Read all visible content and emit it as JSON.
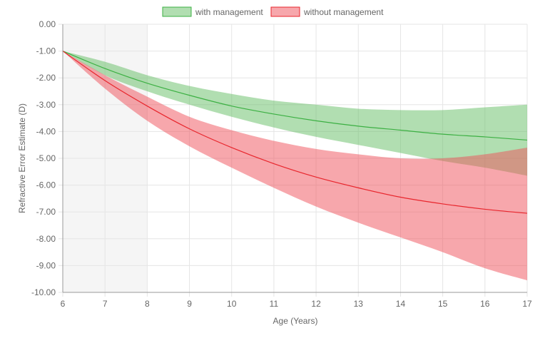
{
  "colors": {
    "with_fill": "rgba(100,190,100,0.5)",
    "with_line": "#3cb043",
    "without_fill": "rgba(240,80,90,0.5)",
    "without_line": "#e8262d",
    "grid": "#e5e5e5",
    "axis": "#999999",
    "shade": "#f5f5f5",
    "text": "#666666"
  },
  "chart_data": {
    "type": "area",
    "title": "",
    "xlabel": "Age (Years)",
    "ylabel": "Refractive Error Estimate (D)",
    "xlim": [
      6,
      17
    ],
    "ylim": [
      -10,
      0
    ],
    "x_ticks": [
      6,
      7,
      8,
      9,
      10,
      11,
      12,
      13,
      14,
      15,
      16,
      17
    ],
    "x_tick_labels": [
      "6",
      "7",
      "8",
      "9",
      "10",
      "11",
      "12",
      "13",
      "14",
      "15",
      "16",
      "17"
    ],
    "y_ticks": [
      0,
      -1,
      -2,
      -3,
      -4,
      -5,
      -6,
      -7,
      -8,
      -9,
      -10
    ],
    "y_tick_labels": [
      "0.00",
      "-1.00",
      "-2.00",
      "-3.00",
      "-4.00",
      "-5.00",
      "-6.00",
      "-7.00",
      "-8.00",
      "-9.00",
      "-10.00"
    ],
    "grid": true,
    "legend_position": "top",
    "shaded_x_range": [
      6,
      8
    ],
    "x": [
      6,
      7,
      8,
      9,
      10,
      11,
      12,
      13,
      14,
      15,
      16,
      17
    ],
    "series": [
      {
        "name": "with management",
        "color_key": "with",
        "mean": [
          -1.0,
          -1.65,
          -2.2,
          -2.65,
          -3.05,
          -3.35,
          -3.6,
          -3.8,
          -3.95,
          -4.1,
          -4.2,
          -4.32
        ],
        "upper": [
          -1.0,
          -1.4,
          -1.9,
          -2.3,
          -2.6,
          -2.85,
          -3.0,
          -3.15,
          -3.2,
          -3.2,
          -3.1,
          -3.0
        ],
        "lower": [
          -1.0,
          -1.9,
          -2.5,
          -3.0,
          -3.45,
          -3.85,
          -4.2,
          -4.5,
          -4.8,
          -5.1,
          -5.35,
          -5.65
        ]
      },
      {
        "name": "without management",
        "color_key": "without",
        "mean": [
          -1.0,
          -2.1,
          -3.05,
          -3.9,
          -4.6,
          -5.2,
          -5.7,
          -6.1,
          -6.45,
          -6.7,
          -6.9,
          -7.05
        ],
        "upper": [
          -1.0,
          -1.9,
          -2.7,
          -3.45,
          -3.95,
          -4.35,
          -4.65,
          -4.85,
          -5.0,
          -5.0,
          -4.85,
          -4.6
        ],
        "lower": [
          -1.0,
          -2.4,
          -3.6,
          -4.55,
          -5.35,
          -6.1,
          -6.8,
          -7.4,
          -7.95,
          -8.5,
          -9.1,
          -9.55
        ]
      }
    ]
  }
}
